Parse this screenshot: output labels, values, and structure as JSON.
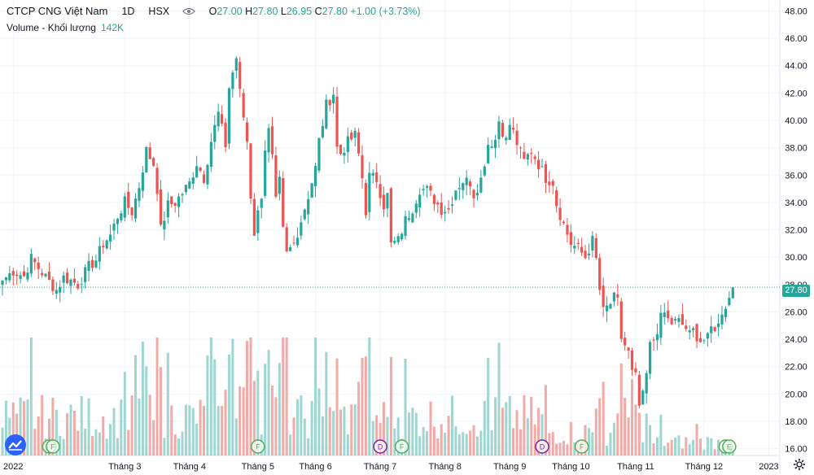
{
  "header": {
    "symbol_title": "CTCP CNG Việt Nam",
    "interval": "1D",
    "exchange": "HSX",
    "o_label": "O",
    "o_value": "27.00",
    "h_label": "H",
    "h_value": "27.80",
    "l_label": "L",
    "l_value": "26.95",
    "c_label": "C",
    "c_value": "27.80",
    "change": "+1.00 (+3.73%)"
  },
  "volume_legend": {
    "label": "Volume - Khối lượng",
    "value": "142K"
  },
  "last_price_tag": "27.80",
  "colors": {
    "up": "#26a69a",
    "down": "#ef5350",
    "up_volume": "#9fd6d1",
    "down_volume": "#f3a9a6",
    "accent": "#2962ff"
  },
  "icons": [
    "eye-icon",
    "tradingview-logo-icon",
    "settings-gear-icon"
  ],
  "chart_data": {
    "type": "candlestick",
    "ylim": [
      15.5,
      48.8
    ],
    "y_ticks": [
      "48.00",
      "46.00",
      "44.00",
      "42.00",
      "40.00",
      "38.00",
      "36.00",
      "34.00",
      "32.00",
      "30.00",
      "28.00",
      "26.00",
      "24.00",
      "22.00",
      "20.00",
      "18.00",
      "16.00"
    ],
    "x_ticks": [
      {
        "label": "2022",
        "bar": 3
      },
      {
        "label": "Tháng 3",
        "bar": 34
      },
      {
        "label": "Tháng 4",
        "bar": 52
      },
      {
        "label": "Tháng 5",
        "bar": 71
      },
      {
        "label": "Tháng 6",
        "bar": 87
      },
      {
        "label": "Tháng 7",
        "bar": 105
      },
      {
        "label": "Tháng 8",
        "bar": 123
      },
      {
        "label": "Tháng 9",
        "bar": 141
      },
      {
        "label": "Tháng 10",
        "bar": 158
      },
      {
        "label": "Tháng 11",
        "bar": 176
      },
      {
        "label": "Tháng 12",
        "bar": 195
      },
      {
        "label": "2023",
        "bar": 213
      }
    ],
    "last_close": 27.8,
    "anchors": [
      [
        0,
        28.3
      ],
      [
        3,
        29.0
      ],
      [
        6,
        28.6
      ],
      [
        8,
        29.9
      ],
      [
        10,
        29.2
      ],
      [
        13,
        28.2
      ],
      [
        15,
        27.6
      ],
      [
        17,
        28.5
      ],
      [
        19,
        28.3
      ],
      [
        21,
        28.0
      ],
      [
        24,
        29.3
      ],
      [
        26,
        29.8
      ],
      [
        28,
        31.0
      ],
      [
        30,
        31.6
      ],
      [
        32,
        33.0
      ],
      [
        34,
        34.0
      ],
      [
        36,
        33.3
      ],
      [
        38,
        35.2
      ],
      [
        40,
        37.8
      ],
      [
        42,
        36.8
      ],
      [
        43,
        35.0
      ],
      [
        44,
        32.0
      ],
      [
        46,
        33.8
      ],
      [
        48,
        34.0
      ],
      [
        50,
        34.7
      ],
      [
        52,
        35.4
      ],
      [
        54,
        36.9
      ],
      [
        56,
        35.8
      ],
      [
        58,
        38.5
      ],
      [
        60,
        40.5
      ],
      [
        62,
        38.2
      ],
      [
        63,
        42.4
      ],
      [
        64,
        43.5
      ],
      [
        65,
        44.6
      ],
      [
        66,
        42.0
      ],
      [
        68,
        38.5
      ],
      [
        69,
        34.5
      ],
      [
        70,
        31.8
      ],
      [
        72,
        34.6
      ],
      [
        73,
        38.0
      ],
      [
        74,
        39.2
      ],
      [
        75,
        37.2
      ],
      [
        76,
        34.0
      ],
      [
        77,
        35.5
      ],
      [
        78,
        31.9
      ],
      [
        79,
        30.2
      ],
      [
        81,
        31.0
      ],
      [
        83,
        32.7
      ],
      [
        85,
        34.5
      ],
      [
        87,
        36.5
      ],
      [
        88,
        38.5
      ],
      [
        90,
        41.1
      ],
      [
        92,
        42.0
      ],
      [
        93,
        38.0
      ],
      [
        94,
        37.6
      ],
      [
        96,
        38.4
      ],
      [
        98,
        38.9
      ],
      [
        99,
        37.5
      ],
      [
        100,
        35.8
      ],
      [
        101,
        33.4
      ],
      [
        102,
        35.9
      ],
      [
        104,
        35.7
      ],
      [
        106,
        33.8
      ],
      [
        107,
        34.5
      ],
      [
        108,
        30.9
      ],
      [
        110,
        31.2
      ],
      [
        112,
        32.7
      ],
      [
        114,
        33.6
      ],
      [
        116,
        35.0
      ],
      [
        118,
        34.9
      ],
      [
        120,
        34.2
      ],
      [
        122,
        33.5
      ],
      [
        124,
        33.5
      ],
      [
        126,
        35.0
      ],
      [
        128,
        35.6
      ],
      [
        130,
        35.5
      ],
      [
        131,
        34.6
      ],
      [
        133,
        35.7
      ],
      [
        135,
        38.3
      ],
      [
        137,
        38.6
      ],
      [
        138,
        40.0
      ],
      [
        140,
        38.5
      ],
      [
        141,
        39.7
      ],
      [
        142,
        39.1
      ],
      [
        144,
        37.6
      ],
      [
        145,
        37.0
      ],
      [
        147,
        37.8
      ],
      [
        149,
        36.8
      ],
      [
        151,
        35.8
      ],
      [
        153,
        35.5
      ],
      [
        154,
        33.9
      ],
      [
        156,
        32.4
      ],
      [
        158,
        31.0
      ],
      [
        160,
        30.6
      ],
      [
        162,
        30.0
      ],
      [
        164,
        31.2
      ],
      [
        165,
        29.8
      ],
      [
        166,
        27.6
      ],
      [
        167,
        26.0
      ],
      [
        169,
        26.6
      ],
      [
        170,
        27.0
      ],
      [
        171,
        26.7
      ],
      [
        172,
        24.1
      ],
      [
        174,
        23.0
      ],
      [
        175,
        21.5
      ],
      [
        176,
        21.2
      ],
      [
        177,
        19.1
      ],
      [
        178,
        19.8
      ],
      [
        179,
        21.4
      ],
      [
        180,
        23.5
      ],
      [
        181,
        24.0
      ],
      [
        183,
        25.5
      ],
      [
        184,
        25.9
      ],
      [
        185,
        25.4
      ],
      [
        186,
        25.2
      ],
      [
        188,
        25.3
      ],
      [
        190,
        24.8
      ],
      [
        191,
        24.3
      ],
      [
        192,
        24.6
      ],
      [
        194,
        23.9
      ],
      [
        196,
        24.0
      ],
      [
        197,
        24.8
      ],
      [
        199,
        25.0
      ],
      [
        200,
        26.1
      ],
      [
        201,
        26.5
      ],
      [
        202,
        27.0
      ],
      [
        203,
        27.8
      ]
    ]
  },
  "markers": [
    {
      "bar": 13,
      "letter": "R",
      "type": "R"
    },
    {
      "bar": 14,
      "letter": "F",
      "type": "F"
    },
    {
      "bar": 71,
      "letter": "F",
      "type": "F"
    },
    {
      "bar": 105,
      "letter": "D",
      "type": "D"
    },
    {
      "bar": 111,
      "letter": "F",
      "type": "F"
    },
    {
      "bar": 150,
      "letter": "D",
      "type": "D"
    },
    {
      "bar": 161,
      "letter": "F",
      "type": "F"
    },
    {
      "bar": 201,
      "letter": "F",
      "type": "F"
    },
    {
      "bar": 202,
      "letter": "E",
      "type": "F"
    }
  ]
}
